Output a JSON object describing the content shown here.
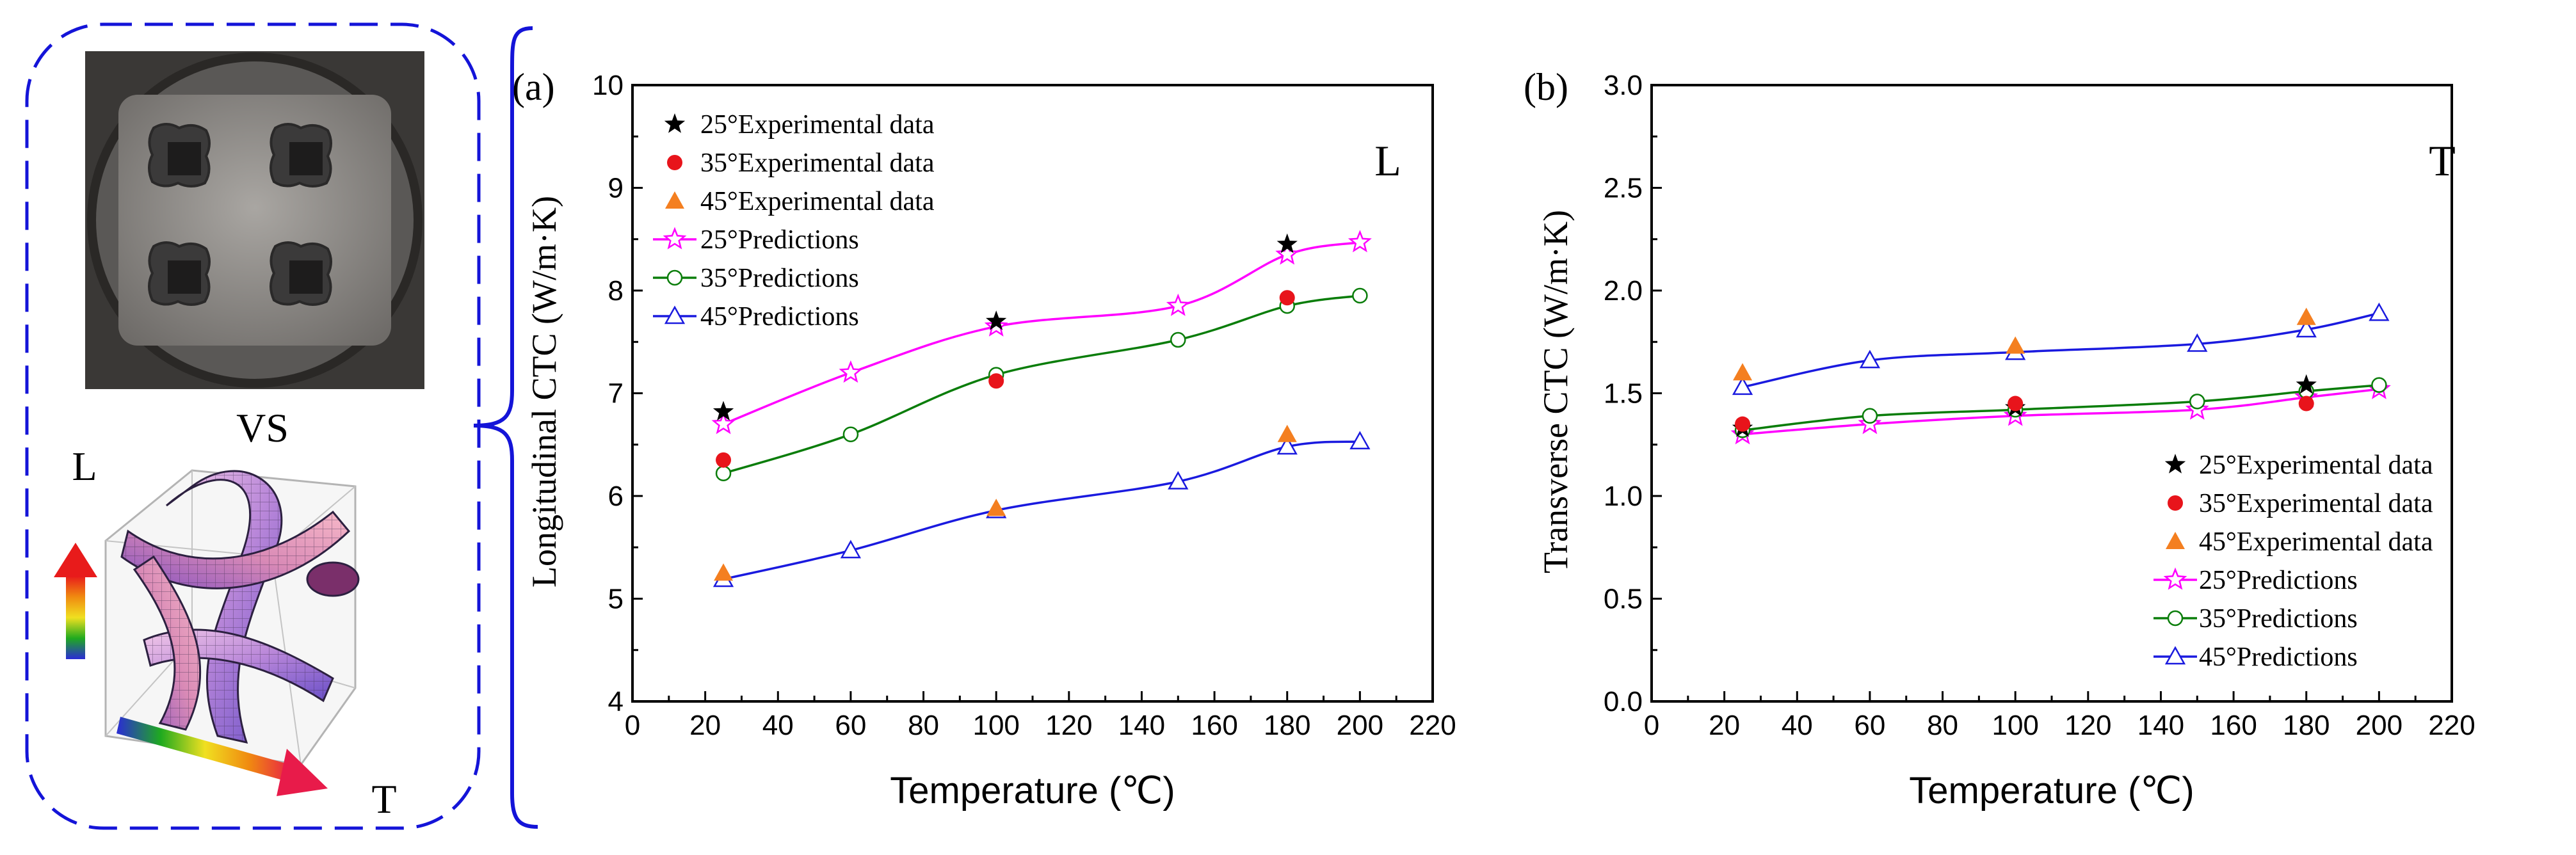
{
  "figure": {
    "left_panel": {
      "vs_label": "VS",
      "axis_l_label": "L",
      "axis_t_label": "T",
      "photo_description_name": "mold-photo",
      "model_description_name": "tpms-3d-model"
    }
  },
  "chart_data": [
    {
      "type": "line",
      "panel_label": "(a)",
      "corner_label": "L",
      "xlabel": "Temperature (℃)",
      "ylabel": "Longitudinal CTC (W/m·K)",
      "xlim": [
        0,
        220
      ],
      "ylim": [
        4,
        10
      ],
      "x_ticks": [
        0,
        20,
        40,
        60,
        80,
        100,
        120,
        140,
        160,
        180,
        200,
        220
      ],
      "y_ticks": [
        4,
        5,
        6,
        7,
        8,
        9,
        10
      ],
      "y_tick_labels": [
        "4",
        "5",
        "6",
        "7",
        "8",
        "9",
        "10"
      ],
      "legend_position": "top-left",
      "experimental": [
        {
          "name": "25°Experimental data",
          "marker": "star",
          "color": "#000000",
          "x": [
            25,
            100,
            180
          ],
          "y": [
            6.82,
            7.7,
            8.45
          ]
        },
        {
          "name": "35°Experimental data",
          "marker": "circle",
          "color": "#e8141b",
          "x": [
            25,
            100,
            180
          ],
          "y": [
            6.35,
            7.12,
            7.93
          ]
        },
        {
          "name": "45°Experimental data",
          "marker": "triangle",
          "color": "#f47f20",
          "x": [
            25,
            100,
            180
          ],
          "y": [
            5.25,
            5.88,
            6.6
          ]
        }
      ],
      "predictions": [
        {
          "name": "25°Predictions",
          "marker": "star-open",
          "color": "#ff00ff",
          "x": [
            25,
            60,
            100,
            150,
            180,
            200
          ],
          "y": [
            6.7,
            7.2,
            7.65,
            7.85,
            8.35,
            8.47
          ]
        },
        {
          "name": "35°Predictions",
          "marker": "circle-open",
          "color": "#0a7d0a",
          "x": [
            25,
            60,
            100,
            150,
            180,
            200
          ],
          "y": [
            6.22,
            6.6,
            7.18,
            7.52,
            7.85,
            7.95
          ]
        },
        {
          "name": "45°Predictions",
          "marker": "triangle-open",
          "color": "#1a1adf",
          "x": [
            25,
            60,
            100,
            150,
            180,
            200
          ],
          "y": [
            5.19,
            5.47,
            5.86,
            6.14,
            6.48,
            6.53
          ]
        }
      ]
    },
    {
      "type": "line",
      "panel_label": "(b)",
      "corner_label": "T",
      "xlabel": "Temperature (℃)",
      "ylabel": "Transverse CTC (W/m·K)",
      "xlim": [
        0,
        220
      ],
      "ylim": [
        0,
        3
      ],
      "x_ticks": [
        0,
        20,
        40,
        60,
        80,
        100,
        120,
        140,
        160,
        180,
        200,
        220
      ],
      "y_ticks": [
        0,
        0.5,
        1.0,
        1.5,
        2.0,
        2.5,
        3.0
      ],
      "y_tick_labels": [
        "0.0",
        "0.5",
        "1.0",
        "1.5",
        "2.0",
        "2.5",
        "3.0"
      ],
      "legend_position": "bottom-right",
      "experimental": [
        {
          "name": "25°Experimental data",
          "marker": "star",
          "color": "#000000",
          "x": [
            25,
            100,
            180
          ],
          "y": [
            1.33,
            1.43,
            1.54
          ]
        },
        {
          "name": "35°Experimental data",
          "marker": "circle",
          "color": "#e8141b",
          "x": [
            25,
            100,
            180
          ],
          "y": [
            1.35,
            1.45,
            1.45
          ]
        },
        {
          "name": "45°Experimental data",
          "marker": "triangle",
          "color": "#f47f20",
          "x": [
            25,
            100,
            180
          ],
          "y": [
            1.6,
            1.73,
            1.87
          ]
        }
      ],
      "predictions": [
        {
          "name": "25°Predictions",
          "marker": "star-open",
          "color": "#ff00ff",
          "x": [
            25,
            60,
            100,
            150,
            180,
            200
          ],
          "y": [
            1.3,
            1.35,
            1.39,
            1.42,
            1.48,
            1.52
          ]
        },
        {
          "name": "35°Predictions",
          "marker": "circle-open",
          "color": "#0a7d0a",
          "x": [
            25,
            60,
            100,
            150,
            180,
            200
          ],
          "y": [
            1.32,
            1.39,
            1.42,
            1.46,
            1.51,
            1.54
          ]
        },
        {
          "name": "45°Predictions",
          "marker": "triangle-open",
          "color": "#1a1adf",
          "x": [
            25,
            60,
            100,
            150,
            180,
            200
          ],
          "y": [
            1.53,
            1.66,
            1.7,
            1.74,
            1.81,
            1.89
          ]
        }
      ]
    }
  ]
}
